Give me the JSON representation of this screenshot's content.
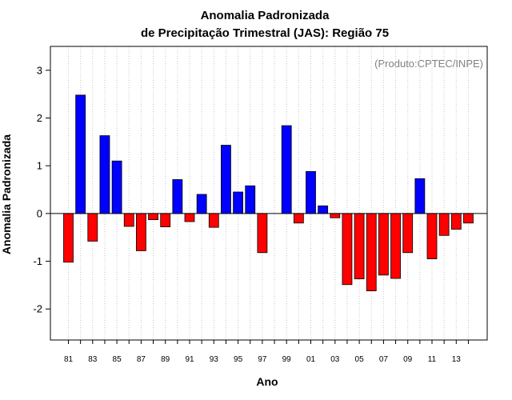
{
  "chart_data": {
    "type": "bar",
    "title": "Anomalia Padronizada",
    "subtitle": "de Precipitação Trimestral (JAS): Região 75",
    "xlabel": "Ano",
    "ylabel": "Anomalia Padronizada",
    "annotation": "(Produto:CPTEC/INPE)",
    "ylim": [
      -2.65,
      3.5
    ],
    "yticks": [
      -2,
      -1,
      0,
      1,
      2,
      3
    ],
    "ytick_labels": [
      "-2",
      "-1",
      "0",
      "1",
      "2",
      "3"
    ],
    "grid": "vertical dotted",
    "positive_color": "#0000ff",
    "negative_color": "#ff0000",
    "categories": [
      "1981",
      "1982",
      "1983",
      "1984",
      "1985",
      "1986",
      "1987",
      "1988",
      "1989",
      "1990",
      "1991",
      "1992",
      "1993",
      "1994",
      "1995",
      "1996",
      "1997",
      "1998",
      "1999",
      "2000",
      "2001",
      "2002",
      "2003",
      "2004",
      "2005",
      "2006",
      "2007",
      "2008",
      "2009",
      "2010",
      "2011",
      "2012",
      "2013",
      "2014"
    ],
    "xtick_labels": [
      "81",
      "",
      "83",
      "",
      "85",
      "",
      "87",
      "",
      "89",
      "",
      "91",
      "",
      "93",
      "",
      "95",
      "",
      "97",
      "",
      "99",
      "",
      "01",
      "",
      "03",
      "",
      "05",
      "",
      "07",
      "",
      "09",
      "",
      "11",
      "",
      "13",
      ""
    ],
    "values": [
      -1.02,
      2.48,
      -0.58,
      1.63,
      1.1,
      -0.27,
      -0.78,
      -0.13,
      -0.28,
      0.71,
      -0.17,
      0.4,
      -0.29,
      1.43,
      0.45,
      0.58,
      -0.82,
      0.0,
      1.84,
      -0.2,
      0.88,
      0.16,
      -0.09,
      -1.49,
      -1.37,
      -1.62,
      -1.29,
      -1.36,
      -0.82,
      0.73,
      -0.95,
      -0.46,
      -0.33,
      -0.2
    ]
  }
}
